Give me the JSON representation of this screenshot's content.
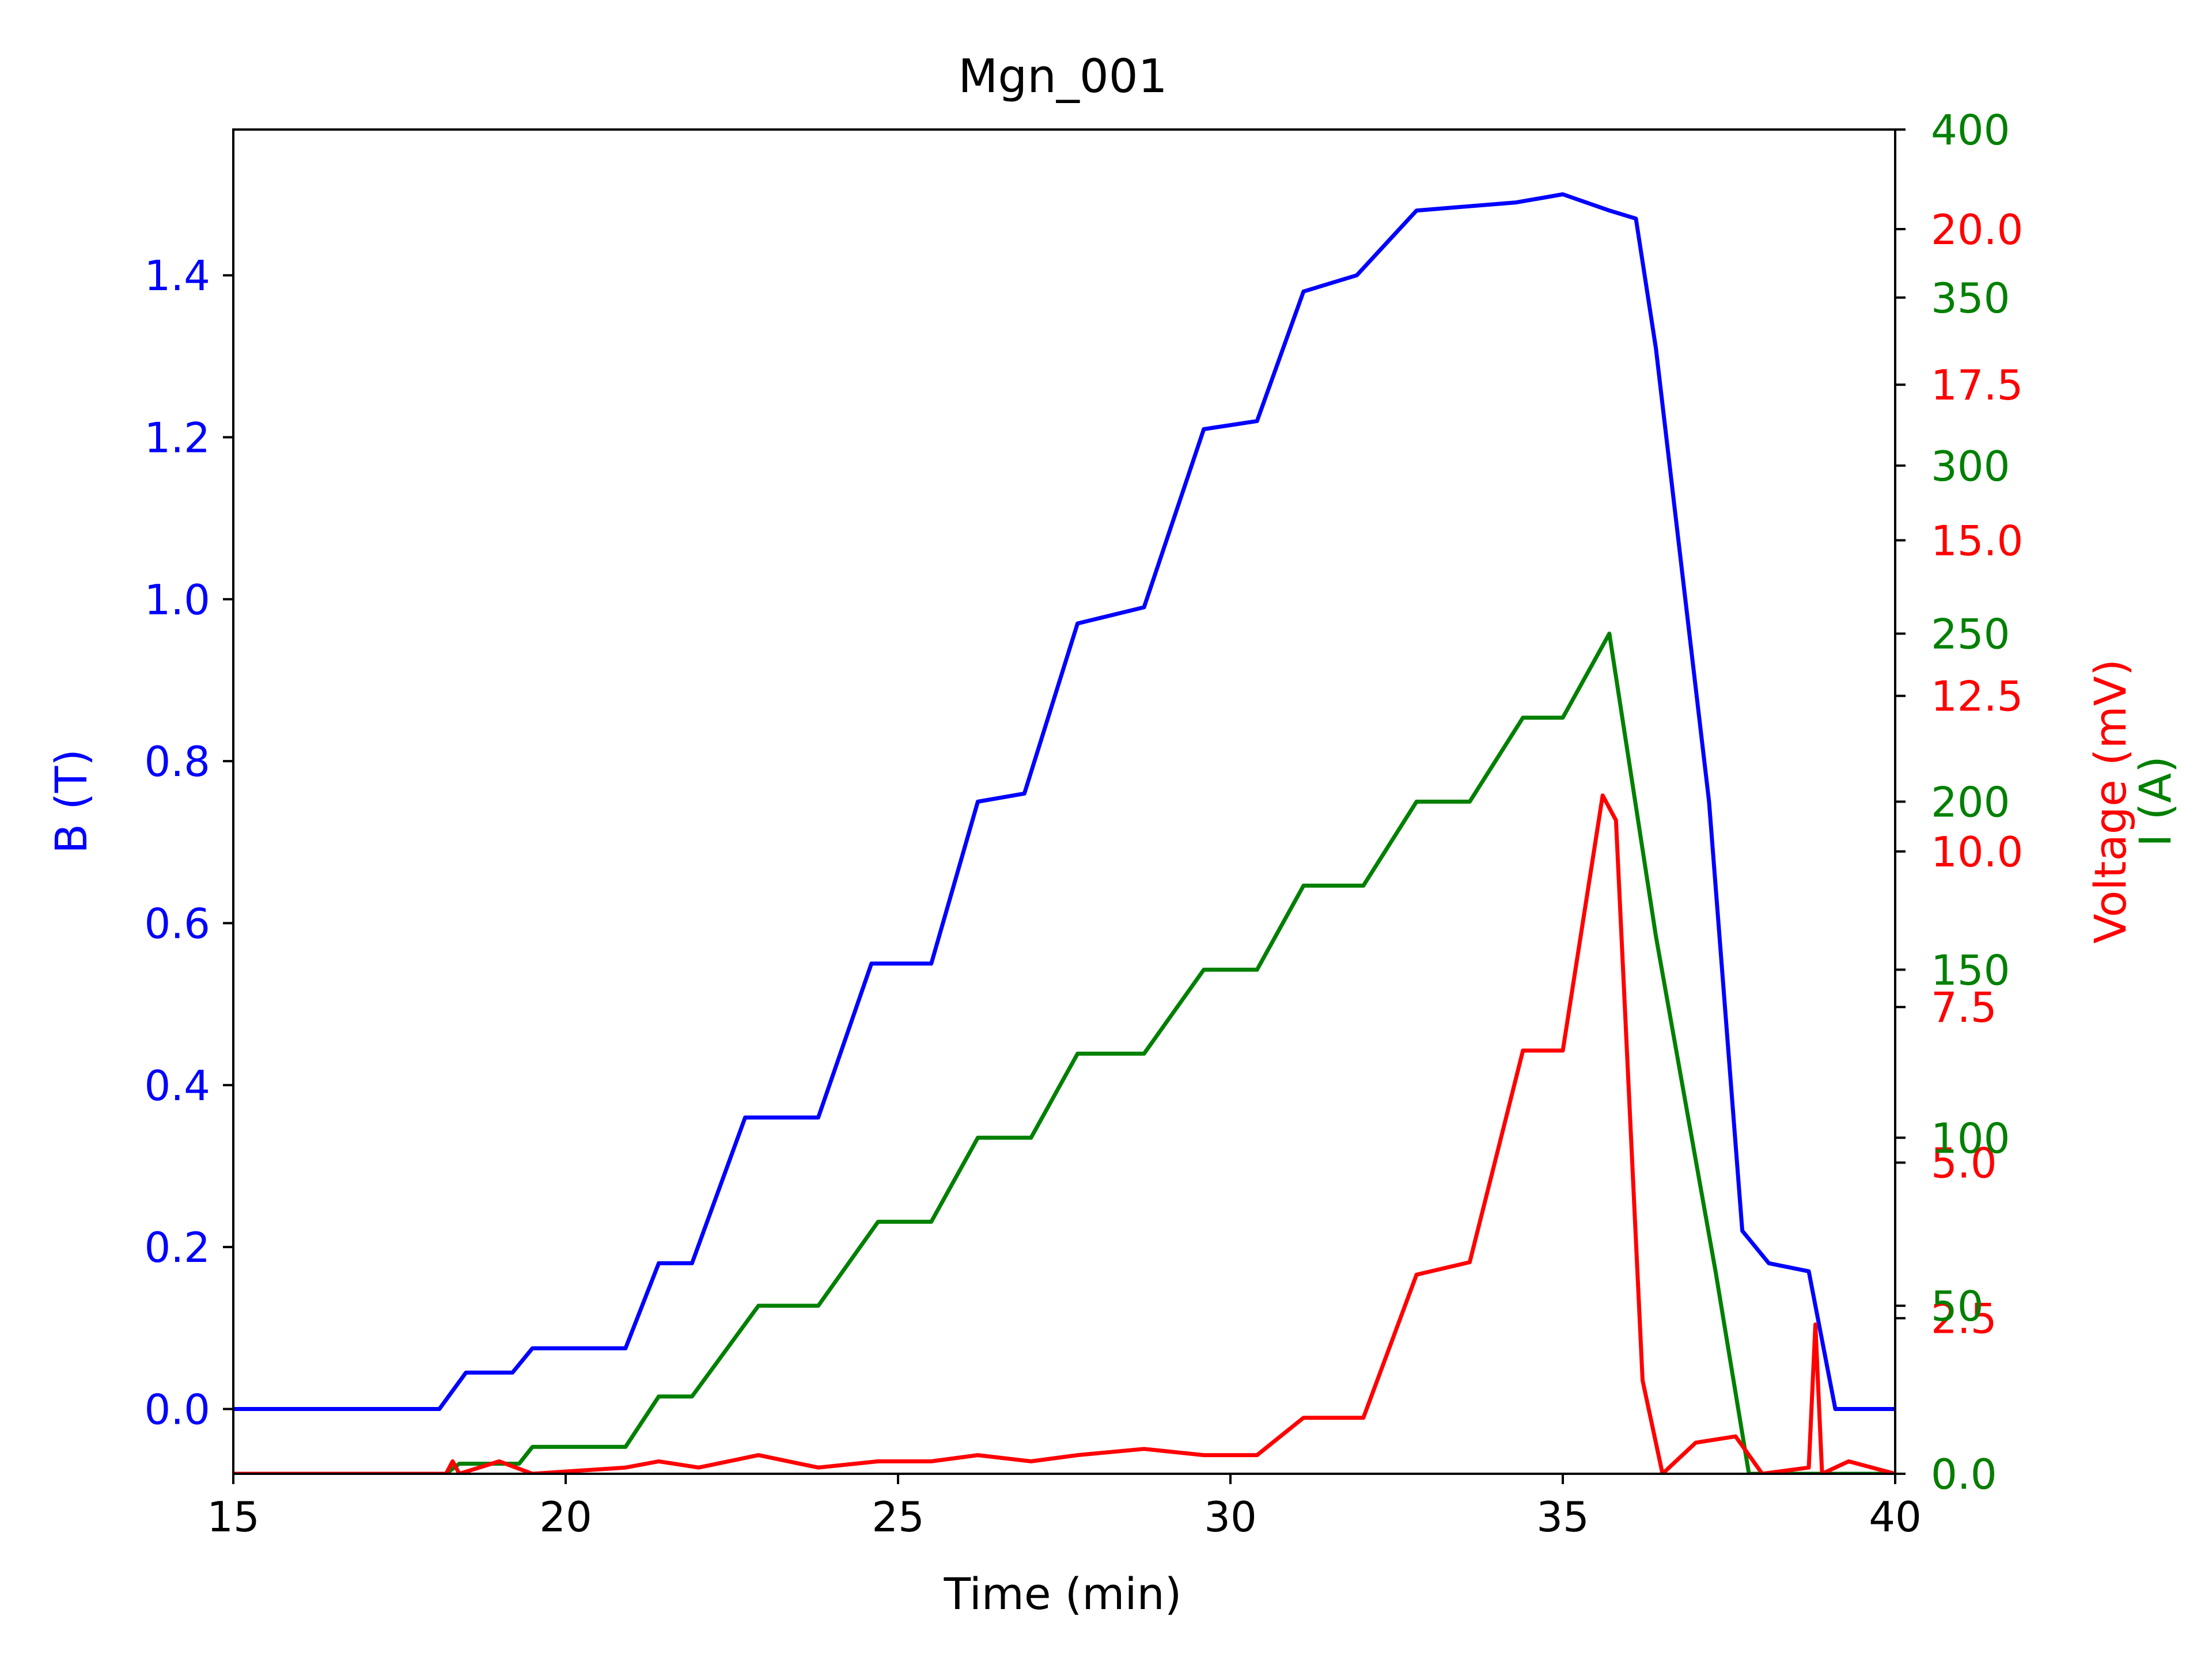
{
  "colors": {
    "b_field": "#0000ff",
    "voltage": "#ff0000",
    "current": "#008000",
    "axis": "#000000",
    "background": "#ffffff"
  },
  "chart_data": {
    "type": "line",
    "title": "Mgn_001",
    "xlabel": "Time (min)",
    "xlim": [
      15,
      40
    ],
    "xticks": [
      15,
      20,
      25,
      30,
      35,
      40
    ],
    "xtick_labels": [
      "15",
      "20",
      "25",
      "30",
      "35",
      "40"
    ],
    "axes": {
      "left": {
        "label": "B (T)",
        "lim": [
          -0.08,
          1.58
        ],
        "ticks": [
          0.0,
          0.2,
          0.4,
          0.6,
          0.8,
          1.0,
          1.2,
          1.4
        ],
        "tick_labels": [
          "0.0",
          "0.2",
          "0.4",
          "0.6",
          "0.8",
          "1.0",
          "1.2",
          "1.4"
        ]
      },
      "right_voltage": {
        "label": "Voltage (mV)",
        "lim": [
          0,
          21.6
        ],
        "ticks": [
          0.0,
          2.5,
          5.0,
          7.5,
          10.0,
          12.5,
          15.0,
          17.5,
          20.0
        ],
        "tick_labels": [
          "0.0",
          "2.5",
          "5.0",
          "7.5",
          "10.0",
          "12.5",
          "15.0",
          "17.5",
          "20.0"
        ]
      },
      "right_current": {
        "label": "I (A)",
        "lim": [
          0,
          400
        ],
        "ticks": [
          0,
          50,
          100,
          150,
          200,
          250,
          300,
          350,
          400
        ],
        "tick_labels": [
          "0.0",
          "50",
          "100",
          "150",
          "200",
          "250",
          "300",
          "350",
          "400"
        ]
      }
    },
    "series": [
      {
        "name": "B (T)",
        "axis": "left",
        "x": [
          15,
          18.1,
          18.5,
          19.2,
          19.5,
          20.9,
          21.4,
          21.9,
          22.7,
          23.8,
          24.6,
          25.5,
          26.2,
          26.9,
          27.7,
          28.7,
          29.6,
          30.4,
          31.1,
          31.9,
          32.8,
          34.3,
          35.0,
          35.7,
          36.1,
          36.4,
          37.2,
          37.7,
          38.1,
          38.7,
          39.1,
          40
        ],
        "values": [
          0.0,
          0.0,
          0.045,
          0.045,
          0.075,
          0.075,
          0.18,
          0.18,
          0.36,
          0.36,
          0.55,
          0.55,
          0.75,
          0.76,
          0.97,
          0.99,
          1.21,
          1.22,
          1.38,
          1.4,
          1.48,
          1.49,
          1.5,
          1.48,
          1.47,
          1.31,
          0.75,
          0.22,
          0.18,
          0.17,
          0.0,
          0.0
        ]
      },
      {
        "name": "I (A)",
        "axis": "right_current",
        "x": [
          15,
          18.2,
          18.4,
          19.3,
          19.5,
          20.9,
          21.4,
          21.9,
          22.9,
          23.8,
          24.7,
          25.5,
          26.2,
          27.0,
          27.7,
          28.7,
          29.6,
          30.4,
          31.1,
          32.0,
          32.8,
          33.6,
          34.4,
          35.0,
          35.7,
          36.4,
          37.3,
          37.8,
          40
        ],
        "values": [
          0,
          0,
          3,
          3,
          8,
          8,
          23,
          23,
          50,
          50,
          75,
          75,
          100,
          100,
          125,
          125,
          150,
          150,
          175,
          175,
          200,
          200,
          225,
          225,
          250,
          160,
          60,
          0,
          0
        ]
      },
      {
        "name": "Voltage (mV)",
        "axis": "right_voltage",
        "x": [
          15,
          18.2,
          18.3,
          18.4,
          19.0,
          19.5,
          20.9,
          21.4,
          22.0,
          22.9,
          23.8,
          24.7,
          25.5,
          26.2,
          27.0,
          27.7,
          28.7,
          29.6,
          30.4,
          31.1,
          32.0,
          32.8,
          33.6,
          34.4,
          35.0,
          35.6,
          35.8,
          36.2,
          36.5,
          37.0,
          37.6,
          38.0,
          38.7,
          38.8,
          38.9,
          39.3,
          40
        ],
        "values": [
          0,
          0,
          0.2,
          0.0,
          0.2,
          0.0,
          0.1,
          0.2,
          0.1,
          0.3,
          0.1,
          0.2,
          0.2,
          0.3,
          0.2,
          0.3,
          0.4,
          0.3,
          0.3,
          0.9,
          0.9,
          3.2,
          3.4,
          6.8,
          6.8,
          10.9,
          10.5,
          1.5,
          0.0,
          0.5,
          0.6,
          0.0,
          0.1,
          2.4,
          0.0,
          0.2,
          0.0
        ]
      }
    ]
  }
}
